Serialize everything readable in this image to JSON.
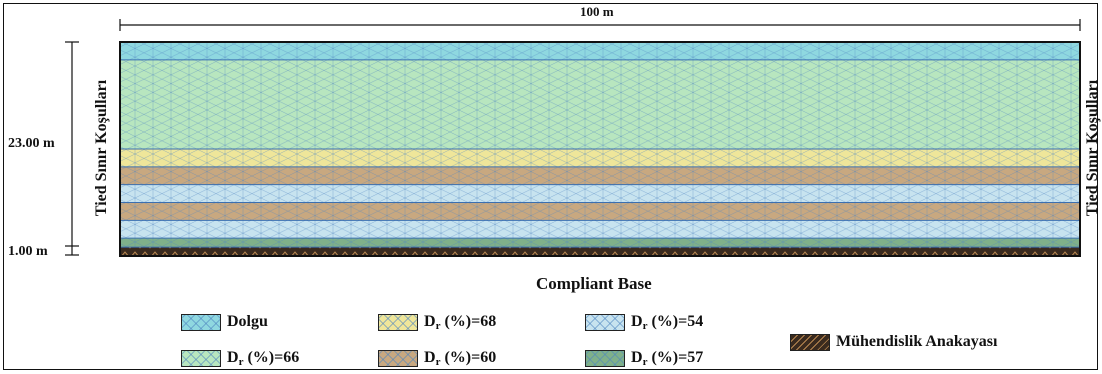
{
  "dimensions": {
    "width_label": "100 m",
    "height_label": "23.00 m",
    "base_label": "1.00 m"
  },
  "side_labels": {
    "left": "Tied Sınır Koşulları",
    "right": "Tied Sınır Koşulları"
  },
  "bottom_label": "Compliant Base",
  "layers": [
    {
      "id": "dolgu",
      "color": "#8fd8e0",
      "thickness": 2
    },
    {
      "id": "dr66",
      "color": "#b8e6bf",
      "thickness": 10
    },
    {
      "id": "dr68",
      "color": "#efe69a",
      "thickness": 2
    },
    {
      "id": "dr60",
      "color": "#c8a880",
      "thickness": 2
    },
    {
      "id": "dr54",
      "color": "#c7e3ef",
      "thickness": 2
    },
    {
      "id": "dr60",
      "color": "#c8a880",
      "thickness": 2
    },
    {
      "id": "dr54",
      "color": "#c7e3ef",
      "thickness": 2
    },
    {
      "id": "dr57",
      "color": "#7fb08a",
      "thickness": 1
    },
    {
      "id": "bedrock",
      "color": "#3a2a1e",
      "thickness": 1
    }
  ],
  "legend": [
    {
      "id": "dolgu",
      "label": "Dolgu",
      "prefix": "",
      "sub": "",
      "color": "#8fd8e0"
    },
    {
      "id": "dr68",
      "label": "(%)=68",
      "prefix": "D",
      "sub": "r",
      "color": "#efe69a"
    },
    {
      "id": "dr54",
      "label": "(%)=54",
      "prefix": "D",
      "sub": "r",
      "color": "#c7e3ef"
    },
    {
      "id": "dr66",
      "label": "(%)=66",
      "prefix": "D",
      "sub": "r",
      "color": "#b8e6bf"
    },
    {
      "id": "dr60",
      "label": "(%)=60",
      "prefix": "D",
      "sub": "r",
      "color": "#c8a880"
    },
    {
      "id": "dr57",
      "label": "(%)=57",
      "prefix": "D",
      "sub": "r",
      "color": "#7fb08a"
    },
    {
      "id": "bedrock",
      "label": "Mühendislik Anakayası",
      "prefix": "",
      "sub": "",
      "color": "#3a2a1e"
    }
  ]
}
